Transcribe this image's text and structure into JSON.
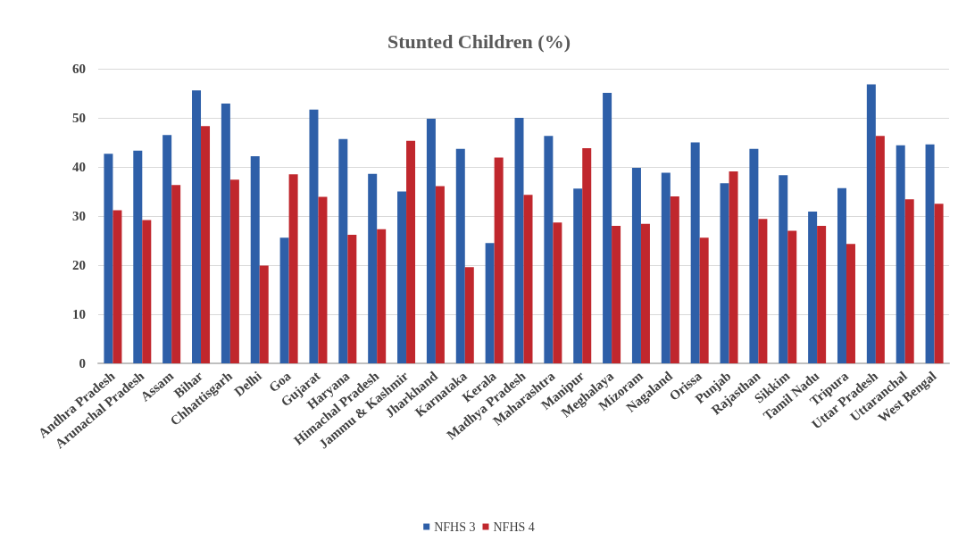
{
  "chart_data": {
    "type": "bar",
    "title": "Stunted Children (%)",
    "categories": [
      "Andhra Pradesh",
      "Arunachal Pradesh",
      "Assam",
      "Bihar",
      "Chhattisgarh",
      "Delhi",
      "Goa",
      "Gujarat",
      "Haryana",
      "Himachal Pradesh",
      "Jammu & Kashmir",
      "Jharkhand",
      "Karnataka",
      "Kerala",
      "Madhya Pradesh",
      "Maharashtra",
      "Manipur",
      "Meghalaya",
      "Mizoram",
      "Nagaland",
      "Orissa",
      "Punjab",
      "Rajasthan",
      "Sikkim",
      "Tamil Nadu",
      "Tripura",
      "Uttar Pradesh",
      "Uttaranchal",
      "West Bengal"
    ],
    "series": [
      {
        "name": "NFHS 3",
        "color": "#2e5fa8",
        "values": [
          42.7,
          43.3,
          46.5,
          55.6,
          52.9,
          42.2,
          25.6,
          51.7,
          45.7,
          38.6,
          35.0,
          49.8,
          43.7,
          24.5,
          50.0,
          46.3,
          35.6,
          55.1,
          39.8,
          38.8,
          45.0,
          36.7,
          43.7,
          38.3,
          30.9,
          35.7,
          56.8,
          44.4,
          44.6
        ]
      },
      {
        "name": "NFHS 4",
        "color": "#c0272d",
        "values": [
          31.2,
          29.2,
          36.3,
          48.3,
          37.4,
          19.9,
          38.5,
          33.9,
          26.2,
          27.3,
          45.3,
          36.1,
          19.6,
          41.9,
          34.3,
          28.7,
          43.8,
          28.0,
          28.4,
          34.0,
          25.6,
          39.1,
          29.4,
          27.0,
          28.0,
          24.3,
          46.3,
          33.4,
          32.5
        ]
      }
    ],
    "ylim": [
      0,
      60
    ],
    "yticks": [
      0,
      10,
      20,
      30,
      40,
      50,
      60
    ],
    "grid": "y",
    "legend": "bottom"
  }
}
